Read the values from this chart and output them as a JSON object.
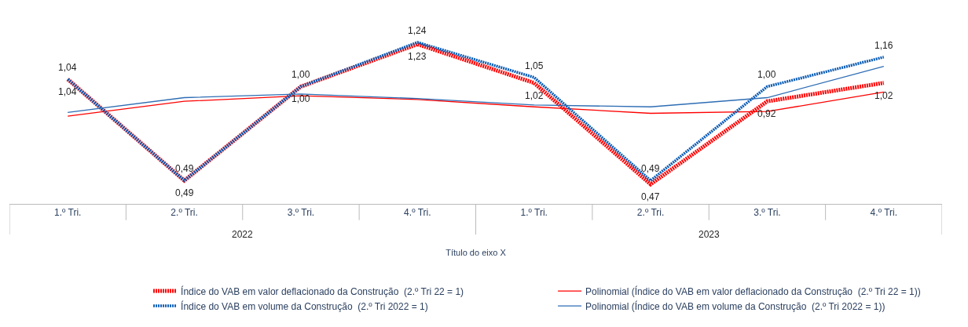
{
  "chart_data": {
    "type": "line",
    "categories": [
      "1.º Tri.",
      "2.º Tri.",
      "3.º Tri.",
      "4.º Tri.",
      "1.º Tri.",
      "2.º Tri.",
      "3.º Tri.",
      "4.º Tri."
    ],
    "xlabel": "Título do eixo X",
    "annotations": [
      "2022",
      "2023"
    ],
    "tick_labels": "x",
    "legend": "bottom",
    "series": [
      {
        "name": "Índice do VAB em valor deflacionado da Construção  (2.º Tri 22 = 1)",
        "color": "#ff0000",
        "line_style": "dotted",
        "values": [
          1.04,
          0.49,
          1.0,
          1.23,
          1.02,
          0.47,
          0.92,
          1.02
        ],
        "value_labels": [
          "1,04",
          "0,49",
          "1,00",
          "1,23",
          "1,02",
          "0,47",
          "0,92",
          "1,02"
        ]
      },
      {
        "name": "Polinomial (Índice do VAB em valor deflacionado da Construção  (2.º Tri 22 = 1))",
        "color": "#ff0000",
        "line_style": "solid",
        "values": [
          0.84,
          0.92,
          0.95,
          0.93,
          0.89,
          0.855,
          0.865,
          0.97
        ]
      },
      {
        "name": "Índice do VAB em volume da Construção  (2.º Tri 2022 = 1)",
        "color": "#0a5cb4",
        "line_style": "dotted",
        "values": [
          1.04,
          0.49,
          1.0,
          1.24,
          1.05,
          0.49,
          1.0,
          1.16
        ],
        "value_labels": [
          "1,04",
          "0,49",
          "1,00",
          "1,24",
          "1,05",
          "0,49",
          "1,00",
          "1,16"
        ]
      },
      {
        "name": "Polinomial (Índice do VAB em volume da Construção  (2.º Tri 2022 = 1))",
        "color": "#2e6db4",
        "line_style": "solid",
        "values": [
          0.86,
          0.94,
          0.96,
          0.935,
          0.9,
          0.89,
          0.94,
          1.11
        ]
      }
    ]
  }
}
